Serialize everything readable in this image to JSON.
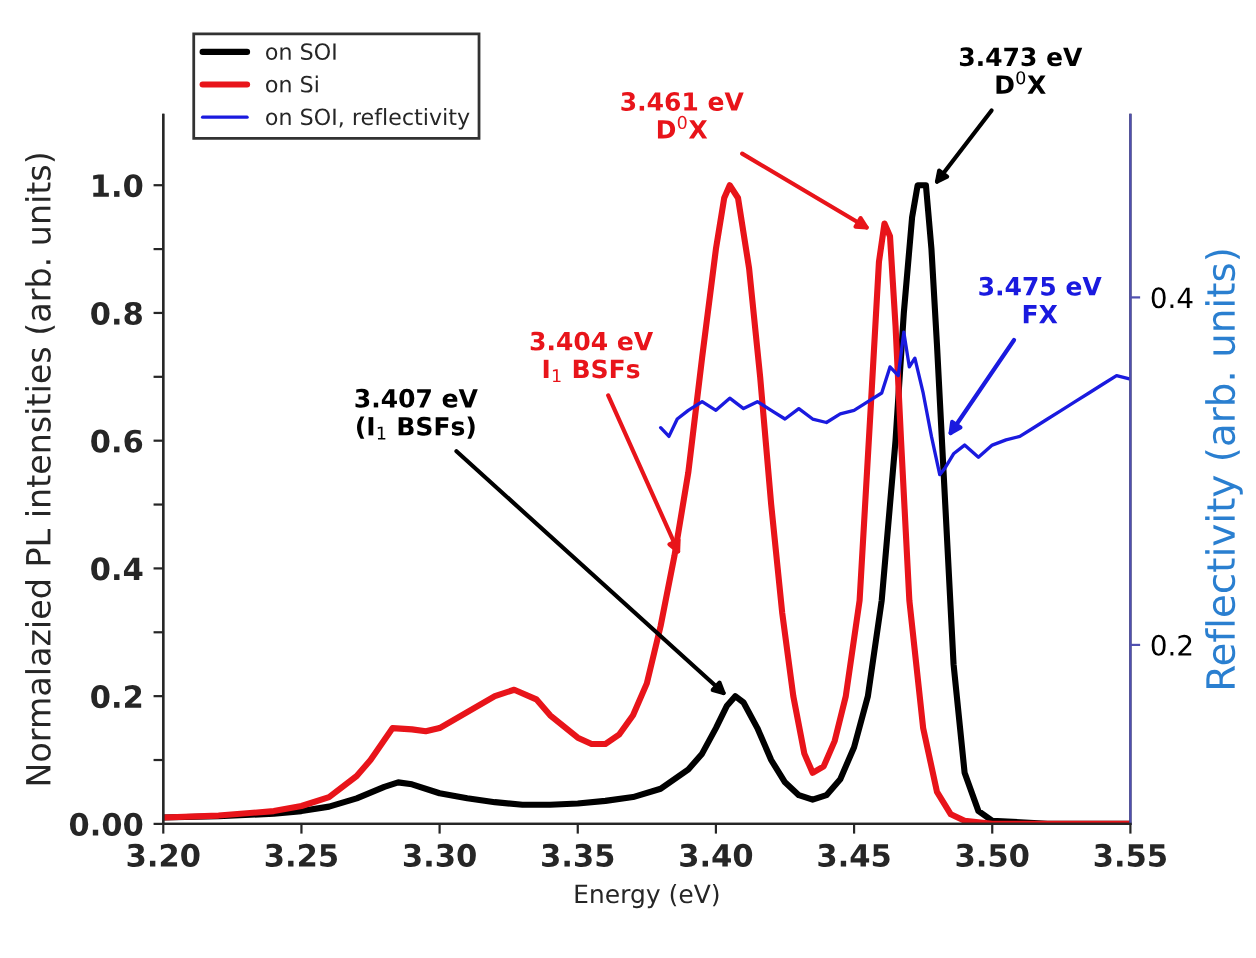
{
  "chart_data": {
    "type": "line",
    "xlabel": "Energy (eV)",
    "ylabel": "Normalazied PL intensities (arb. units)",
    "y2label": "Reflectivity (arb. units)",
    "xlim": [
      3.2,
      3.55
    ],
    "xticks": [
      {
        "value": 3.2,
        "label": "3.20"
      },
      {
        "value": 3.25,
        "label": "3.25"
      },
      {
        "value": 3.3,
        "label": "3.30"
      },
      {
        "value": 3.35,
        "label": "3.35"
      },
      {
        "value": 3.4,
        "label": "3.40"
      },
      {
        "value": 3.45,
        "label": "3.45"
      },
      {
        "value": 3.5,
        "label": "3.50"
      },
      {
        "value": 3.55,
        "label": "3.55"
      }
    ],
    "ylim": [
      0,
      1.11
    ],
    "yticks": [
      {
        "value": 0,
        "label": "0.00"
      },
      {
        "value": 0.1,
        "label": null
      },
      {
        "value": 0.2,
        "label": "0.2"
      },
      {
        "value": 0.3,
        "label": null
      },
      {
        "value": 0.4,
        "label": "0.4"
      },
      {
        "value": 0.5,
        "label": null
      },
      {
        "value": 0.6,
        "label": "0.6"
      },
      {
        "value": 0.7,
        "label": null
      },
      {
        "value": 0.8,
        "label": "0.8"
      },
      {
        "value": 0.9,
        "label": null
      },
      {
        "value": 1.0,
        "label": "1.0"
      }
    ],
    "y2lim": [
      0.097,
      0.505
    ],
    "y2ticks": [
      0.2,
      0.4
    ],
    "legend": "top left",
    "grid": false,
    "marker": "none",
    "line_style": "solid",
    "series": [
      {
        "name": "on SOI",
        "color": "#000000",
        "x": [
          3.2,
          3.22,
          3.24,
          3.25,
          3.26,
          3.27,
          3.28,
          3.285,
          3.29,
          3.3,
          3.31,
          3.32,
          3.33,
          3.34,
          3.35,
          3.36,
          3.37,
          3.38,
          3.39,
          3.395,
          3.4,
          3.404,
          3.407,
          3.41,
          3.415,
          3.42,
          3.425,
          3.43,
          3.435,
          3.44,
          3.445,
          3.45,
          3.455,
          3.46,
          3.465,
          3.468,
          3.471,
          3.473,
          3.476,
          3.478,
          3.48,
          3.483,
          3.486,
          3.49,
          3.495,
          3.5,
          3.52,
          3.55
        ],
        "values": [
          0.01,
          0.012,
          0.016,
          0.02,
          0.027,
          0.04,
          0.058,
          0.065,
          0.062,
          0.048,
          0.04,
          0.034,
          0.03,
          0.03,
          0.032,
          0.036,
          0.042,
          0.055,
          0.085,
          0.11,
          0.15,
          0.185,
          0.2,
          0.19,
          0.15,
          0.1,
          0.065,
          0.045,
          0.038,
          0.045,
          0.07,
          0.12,
          0.2,
          0.35,
          0.6,
          0.8,
          0.95,
          1.0,
          1.0,
          0.9,
          0.75,
          0.5,
          0.25,
          0.08,
          0.02,
          0.005,
          0.0,
          0.0
        ]
      },
      {
        "name": "on Si",
        "color": "#e8141a",
        "x": [
          3.2,
          3.22,
          3.24,
          3.25,
          3.26,
          3.27,
          3.275,
          3.283,
          3.29,
          3.295,
          3.3,
          3.31,
          3.32,
          3.327,
          3.335,
          3.34,
          3.35,
          3.355,
          3.36,
          3.365,
          3.37,
          3.375,
          3.38,
          3.385,
          3.39,
          3.395,
          3.4,
          3.403,
          3.405,
          3.408,
          3.412,
          3.416,
          3.42,
          3.424,
          3.428,
          3.432,
          3.435,
          3.439,
          3.443,
          3.447,
          3.452,
          3.456,
          3.459,
          3.461,
          3.463,
          3.465,
          3.467,
          3.47,
          3.475,
          3.48,
          3.485,
          3.49,
          3.5,
          3.55
        ],
        "values": [
          0.01,
          0.013,
          0.02,
          0.028,
          0.042,
          0.075,
          0.1,
          0.15,
          0.148,
          0.145,
          0.15,
          0.175,
          0.2,
          0.21,
          0.195,
          0.17,
          0.135,
          0.125,
          0.125,
          0.14,
          0.17,
          0.22,
          0.31,
          0.42,
          0.55,
          0.73,
          0.9,
          0.98,
          1.0,
          0.98,
          0.87,
          0.7,
          0.5,
          0.33,
          0.2,
          0.11,
          0.08,
          0.09,
          0.13,
          0.2,
          0.35,
          0.65,
          0.88,
          0.94,
          0.92,
          0.78,
          0.6,
          0.35,
          0.15,
          0.05,
          0.015,
          0.005,
          0.0,
          0.0
        ]
      },
      {
        "name": "on SOI, reflectivity",
        "color": "#1a1adf",
        "axis": "y2",
        "x": [
          3.38,
          3.383,
          3.386,
          3.39,
          3.395,
          3.4,
          3.405,
          3.41,
          3.415,
          3.42,
          3.425,
          3.43,
          3.435,
          3.44,
          3.445,
          3.45,
          3.455,
          3.46,
          3.463,
          3.466,
          3.468,
          3.47,
          3.472,
          3.475,
          3.478,
          3.481,
          3.483,
          3.486,
          3.49,
          3.495,
          3.5,
          3.505,
          3.51,
          3.515,
          3.52,
          3.525,
          3.53,
          3.535,
          3.54,
          3.545,
          3.55
        ],
        "values": [
          0.325,
          0.32,
          0.33,
          0.335,
          0.34,
          0.335,
          0.342,
          0.336,
          0.34,
          0.335,
          0.33,
          0.336,
          0.33,
          0.328,
          0.333,
          0.335,
          0.34,
          0.345,
          0.36,
          0.355,
          0.38,
          0.36,
          0.365,
          0.345,
          0.32,
          0.298,
          0.302,
          0.31,
          0.315,
          0.308,
          0.315,
          0.318,
          0.32,
          0.325,
          0.33,
          0.335,
          0.34,
          0.345,
          0.35,
          0.355,
          0.353
        ]
      }
    ],
    "annotations": [
      {
        "text": "3.404 eV\nI$_{1}$ BSFs",
        "x": 3.387,
        "y": 0.42
      },
      {
        "text": "3.461 eV\nD$^{0}$X",
        "x": 3.456,
        "y": 0.93
      },
      {
        "text": "3.473 eV\nD$^{0}$X",
        "x": 3.479,
        "y": 1.0
      },
      {
        "text": "3.475 eV\nFX",
        "x": 3.484,
        "y": 0.606
      },
      {
        "text": "3.407 eV\n(I$_{1}$ BSFs)",
        "x": 3.404,
        "y": 0.2
      }
    ]
  }
}
